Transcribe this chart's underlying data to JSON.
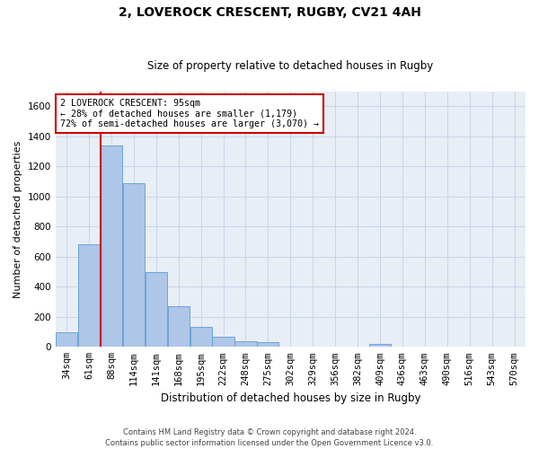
{
  "title": "2, LOVEROCK CRESCENT, RUGBY, CV21 4AH",
  "subtitle": "Size of property relative to detached houses in Rugby",
  "xlabel": "Distribution of detached houses by size in Rugby",
  "ylabel": "Number of detached properties",
  "categories": [
    "34sqm",
    "61sqm",
    "88sqm",
    "114sqm",
    "141sqm",
    "168sqm",
    "195sqm",
    "222sqm",
    "248sqm",
    "275sqm",
    "302sqm",
    "329sqm",
    "356sqm",
    "382sqm",
    "409sqm",
    "436sqm",
    "463sqm",
    "490sqm",
    "516sqm",
    "543sqm",
    "570sqm"
  ],
  "values": [
    95,
    680,
    1340,
    1090,
    500,
    270,
    135,
    70,
    35,
    30,
    0,
    0,
    0,
    0,
    20,
    0,
    0,
    0,
    0,
    0,
    0
  ],
  "bar_color": "#aec6e8",
  "bar_edge_color": "#5b9bd5",
  "red_line_x": 1.5,
  "annotation_text": "2 LOVEROCK CRESCENT: 95sqm\n← 28% of detached houses are smaller (1,179)\n72% of semi-detached houses are larger (3,070) →",
  "annotation_box_color": "#ffffff",
  "annotation_box_edge": "#cc0000",
  "property_line_color": "#cc0000",
  "footer": "Contains HM Land Registry data © Crown copyright and database right 2024.\nContains public sector information licensed under the Open Government Licence v3.0.",
  "ylim": [
    0,
    1700
  ],
  "yticks": [
    0,
    200,
    400,
    600,
    800,
    1000,
    1200,
    1400,
    1600
  ],
  "grid_color": "#c8d4e8",
  "bg_color": "#e8eef6",
  "title_fontsize": 10,
  "subtitle_fontsize": 8.5,
  "xlabel_fontsize": 8.5,
  "ylabel_fontsize": 8,
  "tick_fontsize": 7.5
}
